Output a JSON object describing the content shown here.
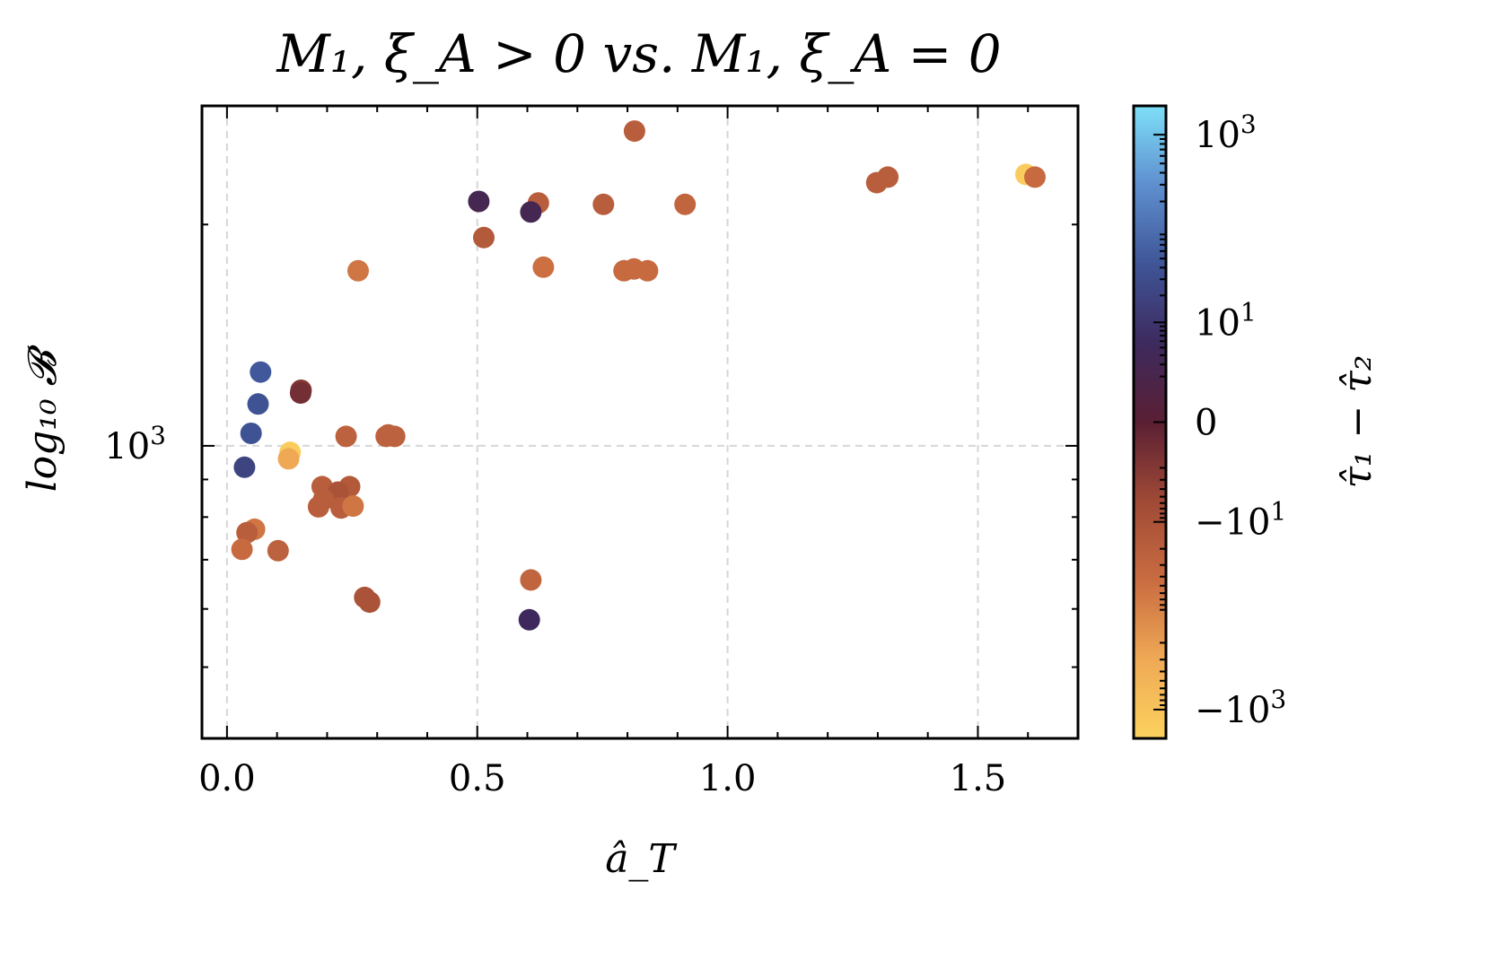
{
  "chart_data": {
    "type": "scatter",
    "title": "M₁, ξ_A > 0  vs.  M₁, ξ_A = 0",
    "xlabel": "â_T",
    "ylabel": "log₁₀ 𝓑",
    "xlim": [
      -0.05,
      1.7
    ],
    "ylim": [
      400,
      2900
    ],
    "yscale": "log",
    "grid": true,
    "x_ticks": [
      {
        "value": 0.0,
        "label": "0.0"
      },
      {
        "value": 0.5,
        "label": "0.5"
      },
      {
        "value": 1.0,
        "label": "1.0"
      },
      {
        "value": 1.5,
        "label": "1.5"
      }
    ],
    "y_ticks": [
      {
        "value": 1000,
        "base": "10",
        "exp": "3"
      }
    ],
    "colorbar": {
      "label": "τ̂₁ − τ̂₂",
      "scale": "symlog",
      "ticks": [
        {
          "value": 1000,
          "base": "10",
          "exp": "3",
          "sign": ""
        },
        {
          "value": 10,
          "base": "10",
          "exp": "1",
          "sign": ""
        },
        {
          "value": 0,
          "base": "0",
          "exp": "",
          "sign": ""
        },
        {
          "value": -10,
          "base": "10",
          "exp": "1",
          "sign": "−"
        },
        {
          "value": -1000,
          "base": "10",
          "exp": "3",
          "sign": "−"
        }
      ],
      "colors": [
        "#fcd25e",
        "#efa955",
        "#c96c41",
        "#a04a36",
        "#5a1f33",
        "#3d2a5e",
        "#3f5597",
        "#5e8fcf",
        "#7edff8"
      ]
    },
    "points": [
      {
        "x": 0.814,
        "y": 2680,
        "c": -20
      },
      {
        "x": 1.596,
        "y": 2340,
        "c": -1500
      },
      {
        "x": 1.614,
        "y": 2320,
        "c": -40
      },
      {
        "x": 1.32,
        "y": 2320,
        "c": -20
      },
      {
        "x": 1.298,
        "y": 2280,
        "c": -20
      },
      {
        "x": 0.503,
        "y": 2150,
        "c": 3
      },
      {
        "x": 0.622,
        "y": 2140,
        "c": -20
      },
      {
        "x": 0.752,
        "y": 2130,
        "c": -20
      },
      {
        "x": 0.915,
        "y": 2130,
        "c": -30
      },
      {
        "x": 0.607,
        "y": 2080,
        "c": 3
      },
      {
        "x": 0.513,
        "y": 1920,
        "c": -15
      },
      {
        "x": 0.262,
        "y": 1730,
        "c": -60
      },
      {
        "x": 0.632,
        "y": 1750,
        "c": -50
      },
      {
        "x": 0.793,
        "y": 1730,
        "c": -40
      },
      {
        "x": 0.813,
        "y": 1740,
        "c": -40
      },
      {
        "x": 0.84,
        "y": 1730,
        "c": -40
      },
      {
        "x": 0.067,
        "y": 1260,
        "c": 50
      },
      {
        "x": 0.148,
        "y": 1190,
        "c": -2
      },
      {
        "x": 0.147,
        "y": 1180,
        "c": -1
      },
      {
        "x": 0.062,
        "y": 1140,
        "c": 40
      },
      {
        "x": 0.048,
        "y": 1040,
        "c": 40
      },
      {
        "x": 0.238,
        "y": 1030,
        "c": -25
      },
      {
        "x": 0.318,
        "y": 1030,
        "c": -25
      },
      {
        "x": 0.335,
        "y": 1030,
        "c": -25
      },
      {
        "x": 0.322,
        "y": 1035,
        "c": -25
      },
      {
        "x": 0.126,
        "y": 980,
        "c": -1500
      },
      {
        "x": 0.123,
        "y": 960,
        "c": -300
      },
      {
        "x": 0.035,
        "y": 935,
        "c": 20
      },
      {
        "x": 0.19,
        "y": 880,
        "c": -20
      },
      {
        "x": 0.245,
        "y": 880,
        "c": -15
      },
      {
        "x": 0.222,
        "y": 865,
        "c": -10
      },
      {
        "x": 0.193,
        "y": 845,
        "c": -20
      },
      {
        "x": 0.183,
        "y": 826,
        "c": -20
      },
      {
        "x": 0.228,
        "y": 823,
        "c": -20
      },
      {
        "x": 0.252,
        "y": 828,
        "c": -60
      },
      {
        "x": 0.055,
        "y": 770,
        "c": -60
      },
      {
        "x": 0.04,
        "y": 762,
        "c": -20
      },
      {
        "x": 0.03,
        "y": 723,
        "c": -40
      },
      {
        "x": 0.102,
        "y": 720,
        "c": -25
      },
      {
        "x": 0.607,
        "y": 657,
        "c": -30
      },
      {
        "x": 0.275,
        "y": 622,
        "c": -10
      },
      {
        "x": 0.285,
        "y": 613,
        "c": -10
      },
      {
        "x": 0.604,
        "y": 580,
        "c": 5
      }
    ]
  }
}
